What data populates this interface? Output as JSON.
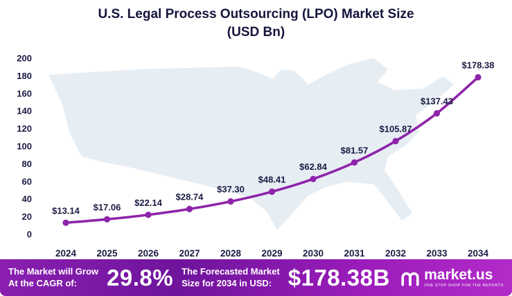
{
  "title": {
    "line1": "U.S. Legal Process Outsourcing (LPO) Market Size",
    "line2": "(USD Bn)"
  },
  "chart_data": {
    "type": "line",
    "title": "U.S. Legal Process Outsourcing (LPO) Market Size (USD Bn)",
    "categories": [
      "2024",
      "2025",
      "2026",
      "2027",
      "2028",
      "2029",
      "2030",
      "2031",
      "2032",
      "2033",
      "2034"
    ],
    "values": [
      13.14,
      17.06,
      22.14,
      28.74,
      37.3,
      48.41,
      62.84,
      81.57,
      105.87,
      137.43,
      178.38
    ],
    "value_prefix": "$",
    "xlabel": "",
    "ylabel": "",
    "ylim": [
      0,
      200
    ],
    "ytick_step": 20,
    "grid": false,
    "legend": "none",
    "line_color": "#8e24aa",
    "marker": "circle",
    "background": "us-map-silhouette"
  },
  "footer": {
    "cagr_label_line1": "The Market will Grow",
    "cagr_label_line2": "At the CAGR of:",
    "cagr_value": "29.8%",
    "forecast_label_line1": "The Forecasted Market",
    "forecast_label_line2": "Size for 2034 in USD:",
    "forecast_value": "$178.38B",
    "brand": {
      "name": "market.us",
      "tagline": "ONE STOP SHOP FOR THE REPORTS"
    }
  },
  "colors": {
    "accent_line": "#8e24aa",
    "text_dark": "#1b1b44",
    "map_fill": "#e6edf3",
    "footer_gradient_start": "#8a1fb0",
    "footer_gradient_end": "#b32bc9"
  }
}
